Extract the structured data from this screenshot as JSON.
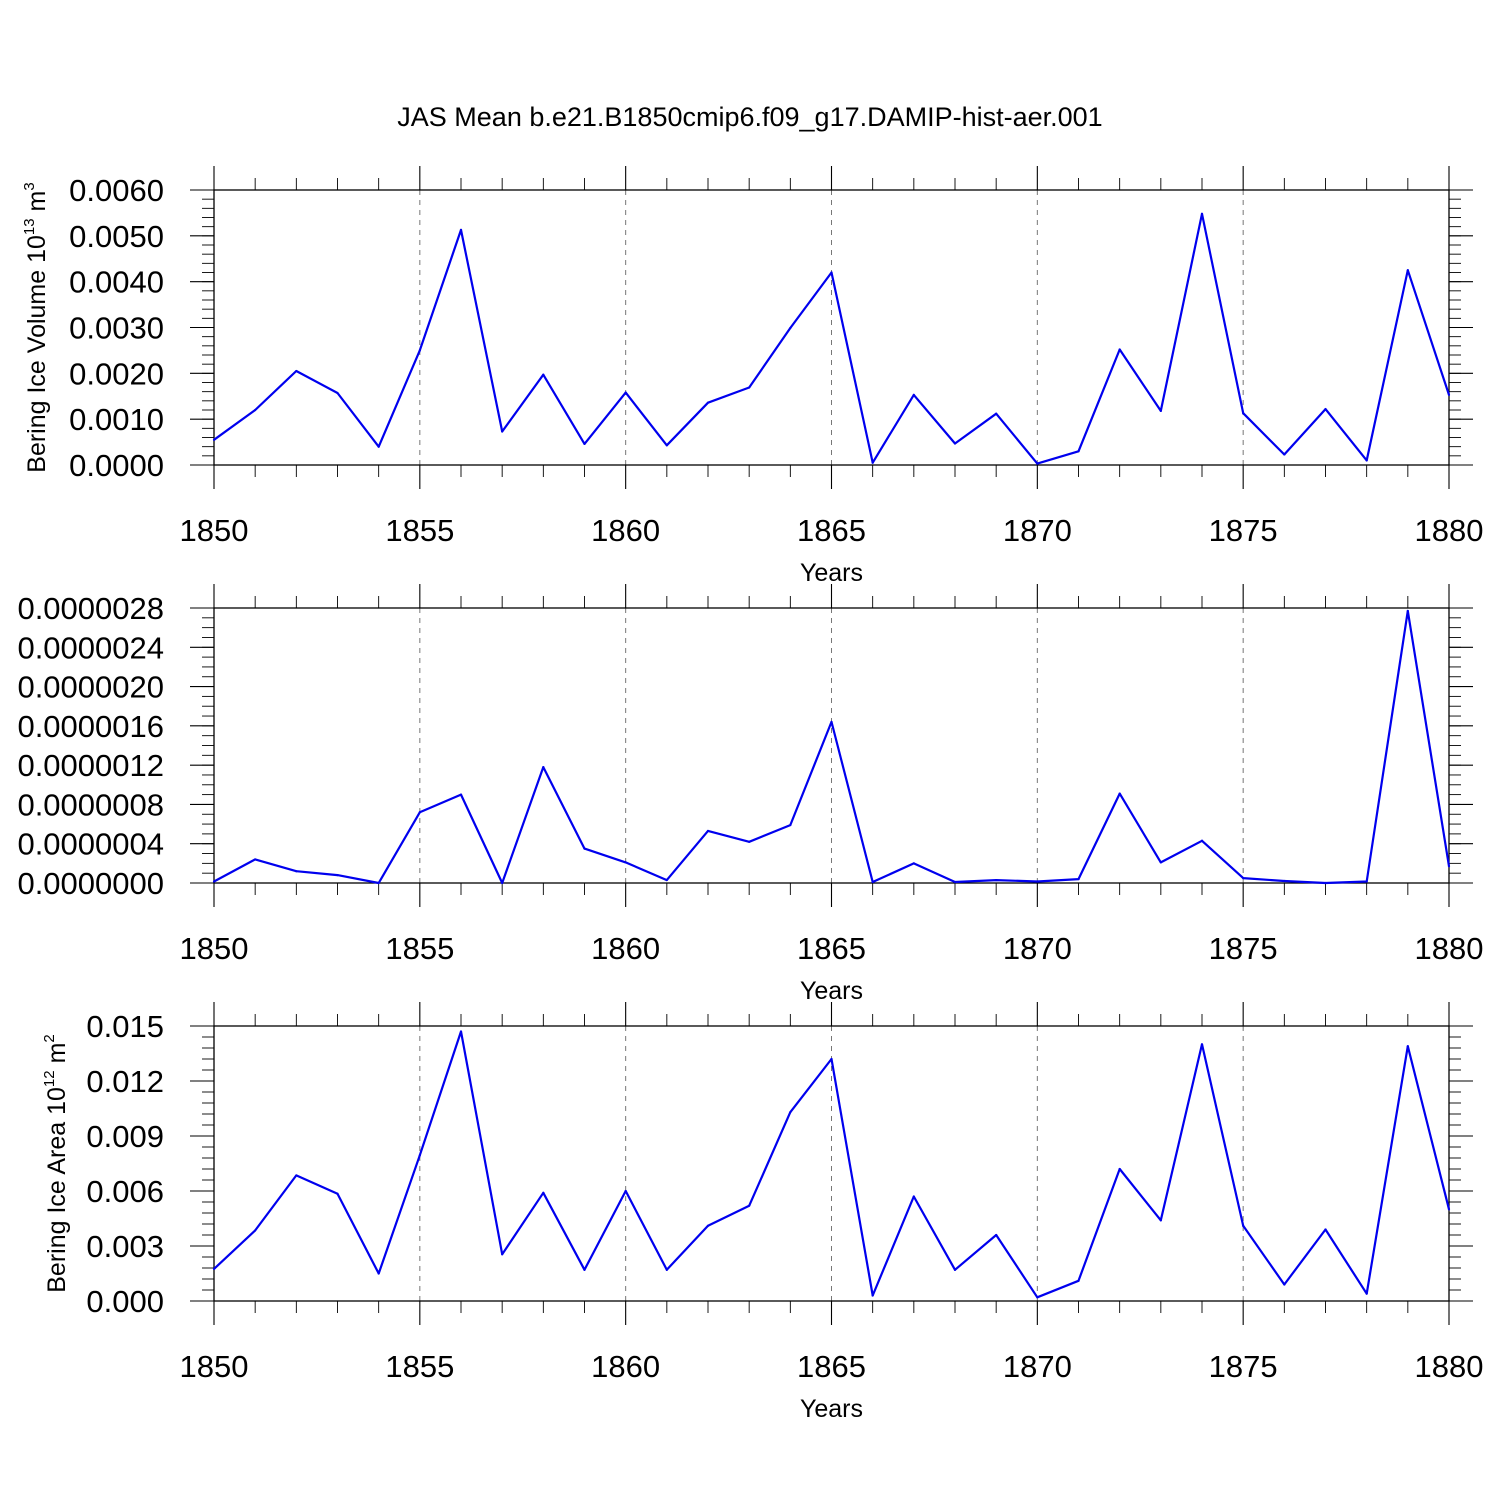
{
  "figure": {
    "title": "JAS Mean b.e21.B1850cmip6.f09_g17.DAMIP-hist-aer.001",
    "line_color": "#0000ee"
  },
  "chart_data": [
    {
      "type": "line",
      "name": "volume",
      "xlabel": "Years",
      "ylabel_prefix": "Bering Ice Volume 10",
      "ylabel_exp": "13",
      "ylabel_unit": "m",
      "ylabel_unit_exp": "3",
      "xlim": [
        1850,
        1880
      ],
      "ylim": [
        0,
        0.006
      ],
      "x_ticks": [
        1850,
        1855,
        1860,
        1865,
        1870,
        1875,
        1880
      ],
      "x_tick_labels": [
        "1850",
        "1855",
        "1860",
        "1865",
        "1870",
        "1875",
        "1880"
      ],
      "y_ticks": [
        0,
        0.001,
        0.002,
        0.003,
        0.004,
        0.005,
        0.006
      ],
      "y_tick_labels": [
        "0.0000",
        "0.0010",
        "0.0020",
        "0.0030",
        "0.0040",
        "0.0050",
        "0.0060"
      ],
      "y_minor_step": 0.0002,
      "x": [
        1850,
        1851,
        1852,
        1853,
        1854,
        1855,
        1856,
        1857,
        1858,
        1859,
        1860,
        1861,
        1862,
        1863,
        1864,
        1865,
        1866,
        1867,
        1868,
        1869,
        1870,
        1871,
        1872,
        1873,
        1874,
        1875,
        1876,
        1877,
        1878,
        1879,
        1880
      ],
      "values": [
        0.00055,
        0.0012,
        0.00205,
        0.00157,
        0.0004,
        0.0025,
        0.00513,
        0.00073,
        0.00197,
        0.00046,
        0.00158,
        0.00043,
        0.00136,
        0.00169,
        0.00299,
        0.0042,
        5e-05,
        0.00153,
        0.00047,
        0.00112,
        3e-05,
        0.0003,
        0.00252,
        0.00118,
        0.00548,
        0.00113,
        0.00023,
        0.00122,
        0.0001,
        0.00425,
        0.00153
      ]
    },
    {
      "type": "line",
      "name": "middle",
      "xlabel": "Years",
      "xlim": [
        1850,
        1880
      ],
      "ylim": [
        0,
        2.8e-06
      ],
      "x_ticks": [
        1850,
        1855,
        1860,
        1865,
        1870,
        1875,
        1880
      ],
      "x_tick_labels": [
        "1850",
        "1855",
        "1860",
        "1865",
        "1870",
        "1875",
        "1880"
      ],
      "y_ticks": [
        0,
        4e-07,
        8e-07,
        1.2e-06,
        1.6e-06,
        2e-06,
        2.4e-06,
        2.8e-06
      ],
      "y_tick_labels": [
        "0.0000000",
        "0.0000004",
        "0.0000008",
        "0.0000012",
        "0.0000016",
        "0.0000020",
        "0.0000024",
        "0.0000028"
      ],
      "y_minor_step": 1e-07,
      "x": [
        1850,
        1851,
        1852,
        1853,
        1854,
        1855,
        1856,
        1857,
        1858,
        1859,
        1860,
        1861,
        1862,
        1863,
        1864,
        1865,
        1866,
        1867,
        1868,
        1869,
        1870,
        1871,
        1872,
        1873,
        1874,
        1875,
        1876,
        1877,
        1878,
        1879,
        1880
      ],
      "values": [
        1.5e-08,
        2.4e-07,
        1.2e-07,
        8e-08,
        0.0,
        7.2e-07,
        9e-07,
        0.0,
        1.18e-06,
        3.5e-07,
        2.1e-07,
        3e-08,
        5.3e-07,
        4.2e-07,
        5.9e-07,
        1.64e-06,
        1e-08,
        2e-07,
        1e-08,
        3e-08,
        1.5e-08,
        4e-08,
        9.1e-07,
        2.1e-07,
        4.3e-07,
        5e-08,
        2e-08,
        0.0,
        1.5e-08,
        2.77e-06,
        1.7e-07
      ]
    },
    {
      "type": "line",
      "name": "area",
      "xlabel": "Years",
      "ylabel_prefix": "Bering Ice Area 10",
      "ylabel_exp": "12",
      "ylabel_unit": "m",
      "ylabel_unit_exp": "2",
      "xlim": [
        1850,
        1880
      ],
      "ylim": [
        0,
        0.015
      ],
      "x_ticks": [
        1850,
        1855,
        1860,
        1865,
        1870,
        1875,
        1880
      ],
      "x_tick_labels": [
        "1850",
        "1855",
        "1860",
        "1865",
        "1870",
        "1875",
        "1880"
      ],
      "y_ticks": [
        0,
        0.003,
        0.006,
        0.009,
        0.012,
        0.015
      ],
      "y_tick_labels": [
        "0.000",
        "0.003",
        "0.006",
        "0.009",
        "0.012",
        "0.015"
      ],
      "y_minor_step": 0.0006,
      "x": [
        1850,
        1851,
        1852,
        1853,
        1854,
        1855,
        1856,
        1857,
        1858,
        1859,
        1860,
        1861,
        1862,
        1863,
        1864,
        1865,
        1866,
        1867,
        1868,
        1869,
        1870,
        1871,
        1872,
        1873,
        1874,
        1875,
        1876,
        1877,
        1878,
        1879,
        1880
      ],
      "values": [
        0.00175,
        0.00385,
        0.00685,
        0.00585,
        0.0015,
        0.00795,
        0.0147,
        0.00255,
        0.0059,
        0.0017,
        0.006,
        0.0017,
        0.0041,
        0.0052,
        0.0103,
        0.0132,
        0.0003,
        0.0057,
        0.0017,
        0.0036,
        0.0002,
        0.0011,
        0.0072,
        0.0044,
        0.014,
        0.0041,
        0.0009,
        0.0039,
        0.0004,
        0.0139,
        0.005
      ]
    }
  ]
}
